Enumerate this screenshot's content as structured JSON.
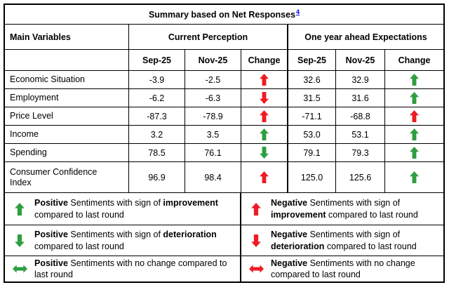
{
  "title": {
    "text": "Summary based on Net Responses",
    "footnote_ref": "4"
  },
  "header": {
    "main_variables": "Main Variables",
    "current_perception": "Current Perception",
    "one_year_ahead": "One year ahead Expectations",
    "sub": [
      "Sep-25",
      "Nov-25",
      "Change",
      "Sep-25",
      "Nov-25",
      "Change"
    ]
  },
  "rows": [
    {
      "variable": "Economic Situation",
      "cp_sep": "-3.9",
      "cp_nov": "-2.5",
      "cp_change": "red-up",
      "ex_sep": "32.6",
      "ex_nov": "32.9",
      "ex_change": "green-up"
    },
    {
      "variable": "Employment",
      "cp_sep": "-6.2",
      "cp_nov": "-6.3",
      "cp_change": "red-down",
      "ex_sep": "31.5",
      "ex_nov": "31.6",
      "ex_change": "green-up"
    },
    {
      "variable": "Price Level",
      "cp_sep": "-87.3",
      "cp_nov": "-78.9",
      "cp_change": "red-up",
      "ex_sep": "-71.1",
      "ex_nov": "-68.8",
      "ex_change": "red-up"
    },
    {
      "variable": "Income",
      "cp_sep": "3.2",
      "cp_nov": "3.5",
      "cp_change": "green-up",
      "ex_sep": "53.0",
      "ex_nov": "53.1",
      "ex_change": "green-up"
    },
    {
      "variable": "Spending",
      "cp_sep": "78.5",
      "cp_nov": "76.1",
      "cp_change": "green-down",
      "ex_sep": "79.1",
      "ex_nov": "79.3",
      "ex_change": "green-up"
    },
    {
      "variable": "Consumer Confidence Index",
      "cp_sep": "96.9",
      "cp_nov": "98.4",
      "cp_change": "red-up",
      "ex_sep": "125.0",
      "ex_nov": "125.6",
      "ex_change": "green-up"
    }
  ],
  "legend": [
    {
      "arrow": "green-up",
      "parts": [
        {
          "t": "Positive",
          "b": true
        },
        {
          "t": " Sentiments with sign of ",
          "b": false
        },
        {
          "t": "improvement",
          "b": true
        },
        {
          "t": " compared to last round",
          "b": false
        }
      ]
    },
    {
      "arrow": "red-up",
      "parts": [
        {
          "t": "Negative",
          "b": true
        },
        {
          "t": " Sentiments with sign of ",
          "b": false
        },
        {
          "t": "improvement",
          "b": true
        },
        {
          "t": " compared to last round",
          "b": false
        }
      ]
    },
    {
      "arrow": "green-down",
      "parts": [
        {
          "t": "Positive",
          "b": true
        },
        {
          "t": " Sentiments with sign of ",
          "b": false
        },
        {
          "t": "deterioration",
          "b": true
        },
        {
          "t": " compared to last round",
          "b": false
        }
      ]
    },
    {
      "arrow": "red-down",
      "parts": [
        {
          "t": "Negative",
          "b": true
        },
        {
          "t": " Sentiments with sign of ",
          "b": false
        },
        {
          "t": "deterioration",
          "b": true
        },
        {
          "t": " compared to last round",
          "b": false
        }
      ]
    },
    {
      "arrow": "green-lr",
      "parts": [
        {
          "t": "Positive",
          "b": true
        },
        {
          "t": " Sentiments with no change compared to last round",
          "b": false
        }
      ]
    },
    {
      "arrow": "red-lr",
      "parts": [
        {
          "t": "Negative",
          "b": true
        },
        {
          "t": " Sentiments with no change compared to last round",
          "b": false
        }
      ]
    }
  ],
  "colors": {
    "arrow_green": "#2f9e41",
    "arrow_red": "#ed1c24",
    "footnote_blue": "#0000ee"
  }
}
